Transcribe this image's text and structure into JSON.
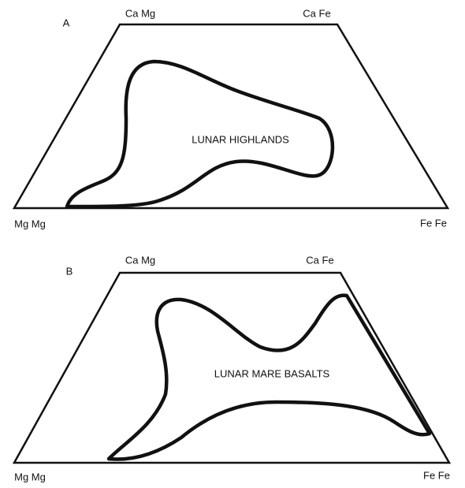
{
  "panels": [
    {
      "label": "A",
      "top_left": "Ca Mg",
      "top_right": "Ca Fe",
      "bottom_left": "Mg Mg",
      "bottom_right": "Fe Fe",
      "region": "LUNAR HIGHLANDS"
    },
    {
      "label": "B",
      "top_left": "Ca Mg",
      "top_right": "Ca Fe",
      "bottom_left": "Mg Mg",
      "bottom_right": "Fe Fe",
      "region": "LUNAR MARE BASALTS"
    }
  ]
}
